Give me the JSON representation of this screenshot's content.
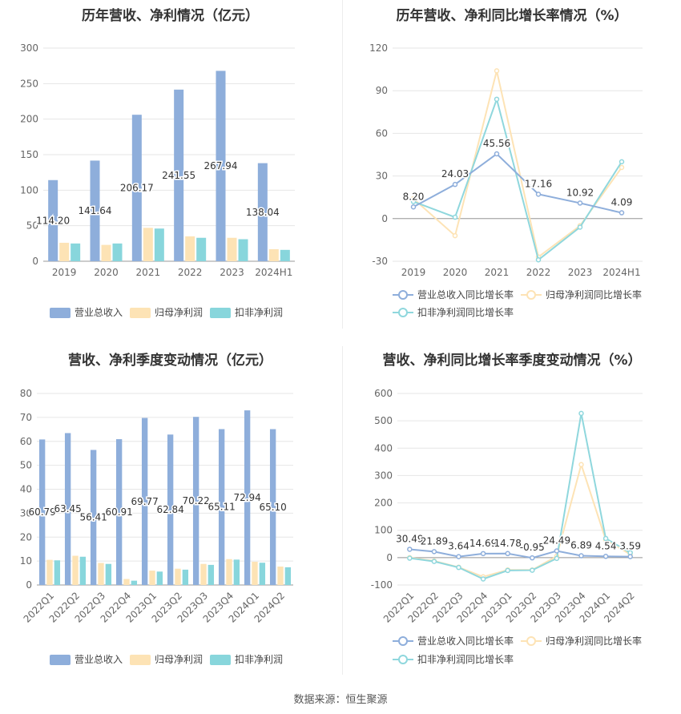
{
  "footer": {
    "source": "数据来源：恒生聚源"
  },
  "legend_labels": {
    "revenue": "营业总收入",
    "net_profit": "归母净利润",
    "deducted_profit": "扣非净利润",
    "revenue_growth": "营业总收入同比增长率",
    "net_profit_growth": "归母净利润同比增长率",
    "deducted_profit_growth": "扣非净利润同比增长率"
  },
  "colors": {
    "revenue": "#8eaedb",
    "net_profit": "#fde3b5",
    "deducted_profit": "#88d6dc"
  },
  "chart_data": [
    {
      "type": "bar",
      "title": "历年营收、净利情况（亿元）",
      "categories": [
        "2019",
        "2020",
        "2021",
        "2022",
        "2023",
        "2024H1"
      ],
      "ylim": [
        0,
        300
      ],
      "yticks": [
        0,
        50,
        100,
        150,
        200,
        250,
        300
      ],
      "series": [
        {
          "name": "营业总收入",
          "values": [
            114.2,
            141.64,
            206.17,
            241.55,
            267.94,
            138.04
          ],
          "labels": [
            "114.20",
            "141.64",
            "206.17",
            "241.55",
            "267.94",
            "138.04"
          ]
        },
        {
          "name": "归母净利润",
          "values": [
            26,
            23,
            47,
            35,
            33,
            17
          ]
        },
        {
          "name": "扣非净利润",
          "values": [
            25,
            25,
            46,
            33,
            31,
            16
          ]
        }
      ],
      "legend": "bottom"
    },
    {
      "type": "line",
      "title": "历年营收、净利同比增长率情况（%）",
      "categories": [
        "2019",
        "2020",
        "2021",
        "2022",
        "2023",
        "2024H1"
      ],
      "ylim": [
        -30,
        120
      ],
      "yticks": [
        -30,
        0,
        30,
        60,
        90,
        120
      ],
      "series": [
        {
          "name": "营业总收入同比增长率",
          "values": [
            8.2,
            24.03,
            45.56,
            17.16,
            10.92,
            4.09
          ],
          "labels": [
            "8.20",
            "24.03",
            "45.56",
            "17.16",
            "10.92",
            "4.09"
          ]
        },
        {
          "name": "归母净利润同比增长率",
          "values": [
            14,
            -12,
            104,
            -27,
            -5,
            36
          ]
        },
        {
          "name": "扣非净利润同比增长率",
          "values": [
            12,
            1,
            84,
            -29,
            -6,
            40
          ]
        }
      ],
      "legend": "bottom"
    },
    {
      "type": "bar",
      "title": "营收、净利季度变动情况（亿元）",
      "categories": [
        "2022Q1",
        "2022Q2",
        "2022Q3",
        "2022Q4",
        "2023Q1",
        "2023Q2",
        "2023Q3",
        "2023Q4",
        "2024Q1",
        "2024Q2"
      ],
      "ylim": [
        0,
        80
      ],
      "yticks": [
        0,
        10,
        20,
        30,
        40,
        50,
        60,
        70,
        80
      ],
      "series": [
        {
          "name": "营业总收入",
          "values": [
            60.79,
            63.45,
            56.41,
            60.91,
            69.77,
            62.84,
            70.22,
            65.11,
            72.94,
            65.1
          ],
          "labels": [
            "60.79",
            "63.45",
            "56.41",
            "60.91",
            "69.77",
            "62.84",
            "70.22",
            "65.11",
            "72.94",
            "65.10"
          ]
        },
        {
          "name": "归母净利润",
          "values": [
            10.5,
            12.2,
            9.2,
            2.5,
            6.0,
            6.8,
            8.8,
            10.8,
            9.7,
            7.7
          ]
        },
        {
          "name": "扣非净利润",
          "values": [
            10.3,
            11.8,
            8.8,
            1.8,
            5.6,
            6.4,
            8.4,
            10.6,
            9.3,
            7.4
          ]
        }
      ],
      "legend": "bottom"
    },
    {
      "type": "line",
      "title": "营收、净利同比增长率季度变动情况（%）",
      "categories": [
        "2022Q1",
        "2022Q2",
        "2022Q3",
        "2022Q4",
        "2023Q1",
        "2023Q2",
        "2023Q3",
        "2023Q4",
        "2024Q1",
        "2024Q2"
      ],
      "ylim": [
        -100,
        600
      ],
      "yticks": [
        -100,
        0,
        100,
        200,
        300,
        400,
        500,
        600
      ],
      "series": [
        {
          "name": "营业总收入同比增长率",
          "values": [
            30.49,
            21.89,
            3.64,
            14.69,
            14.78,
            -0.95,
            24.49,
            6.89,
            4.54,
            3.59
          ],
          "labels": [
            "30.49",
            "21.89",
            "3.64",
            "14.69",
            "14.78",
            "-0.95",
            "24.49",
            "6.89",
            "4.54",
            "3.59"
          ]
        },
        {
          "name": "归母净利润同比增长率",
          "values": [
            0,
            -12,
            -35,
            -70,
            -45,
            -45,
            5,
            340,
            65,
            12
          ]
        },
        {
          "name": "扣非净利润同比增长率",
          "values": [
            -2,
            -14,
            -36,
            -78,
            -47,
            -46,
            -3,
            527,
            70,
            18
          ]
        }
      ],
      "legend": "bottom"
    }
  ]
}
